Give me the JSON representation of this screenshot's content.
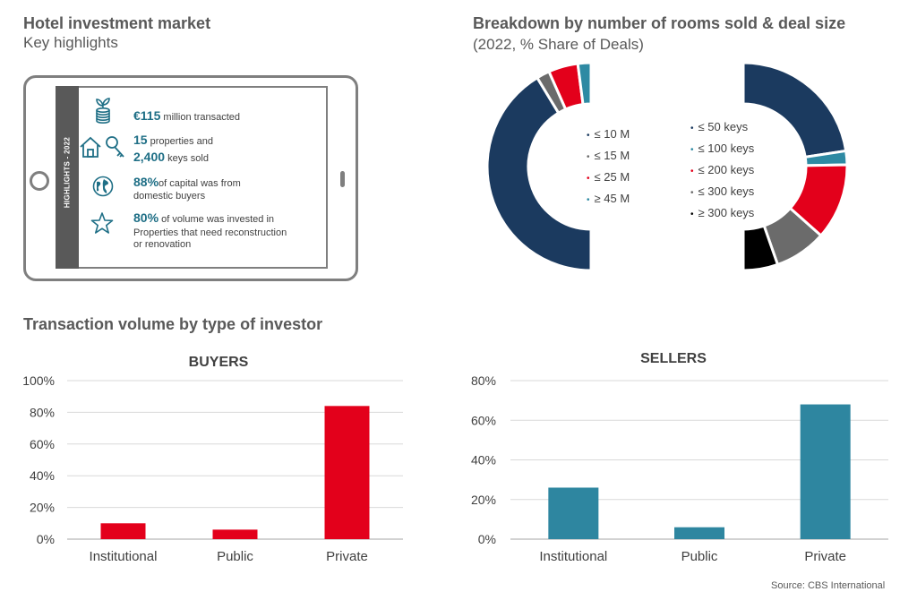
{
  "header": {
    "title": "Hotel investment market",
    "subtitle": "Key highlights"
  },
  "highlights": {
    "band_label": "HIGHLIGHTS - 2022",
    "items": [
      {
        "icon": "money-stack-icon",
        "big": "€115",
        "small": " million transacted"
      },
      {
        "icon": "house-key-icon",
        "big": "15",
        "small": " properties and",
        "big2": "2,400",
        "small2": " keys sold"
      },
      {
        "icon": "globe-icon",
        "big": "88%",
        "small": "of capital was from",
        "line2": "domestic buyers"
      },
      {
        "icon": "star-icon",
        "big": "80%",
        "small": " of volume was invested in",
        "line2": "Properties that need reconstruction",
        "line3": "or renovation"
      }
    ]
  },
  "breakdown": {
    "title": "Breakdown by number of rooms sold & deal size",
    "subtitle": "(2022, % Share of Deals)"
  },
  "chart_data": [
    {
      "type": "pie",
      "name": "deal-size",
      "categories": [
        "≤ 10 M",
        "≤ 15 M",
        "≤ 25 M",
        "≥ 45 M"
      ],
      "values": [
        81,
        4,
        9,
        4
      ],
      "colors": [
        "#1b3a5f",
        "#6b6b6b",
        "#e3001b",
        "#2e8aa3"
      ]
    },
    {
      "type": "pie",
      "name": "rooms-sold",
      "categories": [
        "≤ 50 keys",
        "≤ 100 keys",
        "≤ 200 keys",
        "≤ 300 keys",
        "≥ 300 keys"
      ],
      "values": [
        42,
        4,
        22,
        15,
        10
      ],
      "colors": [
        "#1b3a5f",
        "#2e8aa3",
        "#e3001b",
        "#6b6b6b",
        "#000000"
      ]
    },
    {
      "type": "bar",
      "title": "BUYERS",
      "categories": [
        "Institutional",
        "Public",
        "Private"
      ],
      "values": [
        10,
        6,
        84
      ],
      "ylim": [
        0,
        100
      ],
      "yticks": [
        "0%",
        "20%",
        "40%",
        "60%",
        "80%",
        "100%"
      ],
      "color": "#e3001b"
    },
    {
      "type": "bar",
      "title": "SELLERS",
      "categories": [
        "Institutional",
        "Public",
        "Private"
      ],
      "values": [
        26,
        6,
        68
      ],
      "ylim": [
        0,
        80
      ],
      "yticks": [
        "0%",
        "20%",
        "40%",
        "60%",
        "80%"
      ],
      "color": "#2e86a0"
    }
  ],
  "investor_section": {
    "title": "Transaction volume by type of investor"
  },
  "footer": {
    "source": "Source: CBS International"
  }
}
